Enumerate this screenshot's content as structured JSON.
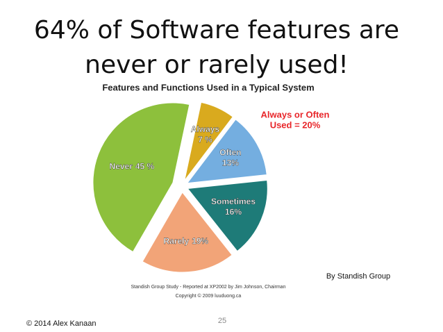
{
  "slide": {
    "title": "64% of Software features are never or rarely used!",
    "source": "By Standish Group",
    "copyright": "© 2014 Alex Kanaan",
    "page_number": "25"
  },
  "chart_data": {
    "type": "pie",
    "title": "Features and Functions Used in a Typical System",
    "categories": [
      "Always",
      "Often",
      "Sometimes",
      "Rarely",
      "Never"
    ],
    "values": [
      7,
      13,
      16,
      19,
      45
    ],
    "value_labels": [
      "7 %",
      "13%",
      "16%",
      "19%",
      "45 %"
    ],
    "colors": [
      "#d9aa1e",
      "#74aee0",
      "#1e7b78",
      "#f2a478",
      "#8dc03c"
    ],
    "annotation": [
      "Always or Often",
      "Used = 20%"
    ],
    "footnotes": [
      "Standish Group Study - Reported at XP2002 by Jim Johnson, Chairman",
      "Copyright © 2009 luuduong.ca"
    ]
  }
}
